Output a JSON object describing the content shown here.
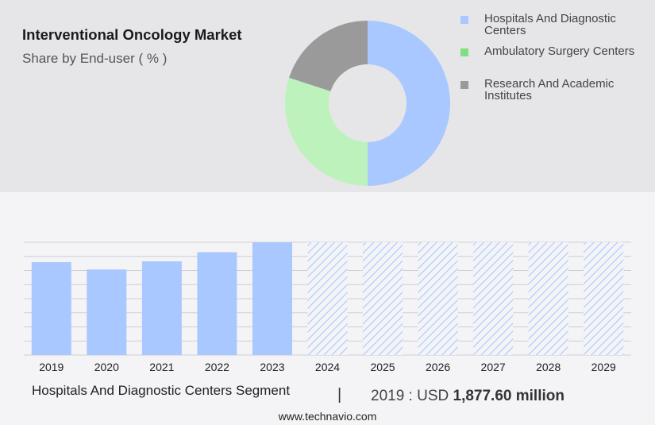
{
  "header": {
    "title": "Interventional Oncology Market",
    "subtitle": "Share by End-user ( % )"
  },
  "colors": {
    "hospitals": "#a8c8ff",
    "ambulatory": "#bdf2bd",
    "research": "#9a9a9a",
    "legend_ambulatory": "#7ee07e",
    "bar": "#a8c8ff",
    "grid": "#cfcfd4"
  },
  "chart_data": [
    {
      "type": "pie",
      "title": "Share by End-user ( % )",
      "categories": [
        "Hospitals And Diagnostic Centers",
        "Ambulatory Surgery Centers",
        "Research And Academic Institutes"
      ],
      "values": [
        50,
        30,
        20
      ],
      "legend_position": "right"
    },
    {
      "type": "bar",
      "categories": [
        "2019",
        "2020",
        "2021",
        "2022",
        "2023",
        "2024",
        "2025",
        "2026",
        "2027",
        "2028",
        "2029"
      ],
      "values": [
        1877.6,
        1730,
        1895,
        2080,
        2280,
        2280,
        2280,
        2280,
        2280,
        2280,
        2280
      ],
      "forecast_from": "2024",
      "ylim": [
        0,
        2280
      ],
      "grid": true
    }
  ],
  "footer": {
    "segment": "Hospitals And Diagnostic Centers Segment",
    "divider": "|",
    "value_prefix": "2019 : USD",
    "value": "1,877.60 million",
    "url": "www.technavio.com"
  }
}
